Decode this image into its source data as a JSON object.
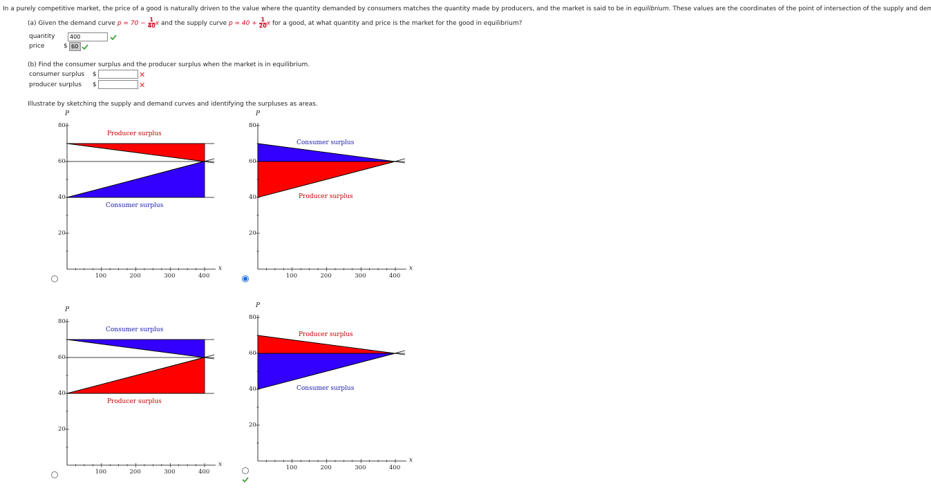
{
  "intro": {
    "text1": "In a purely competitive market, the price of a good is naturally driven to the value where the quantity demanded by consumers matches the quantity made by producers, and the market is said to be in ",
    "emph": "equilibrium",
    "text2": ". These values are the coordinates of the point of intersection of the supply and demand curve"
  },
  "part_a": {
    "prefix": "(a) Given the demand curve",
    "demand_lhs": "p = 70 −",
    "demand_num": "1",
    "demand_den": "40",
    "demand_var": "x",
    "mid": "and the supply curve",
    "supply_lhs": "p = 40 +",
    "supply_num": "1",
    "supply_den": "20",
    "supply_var": "x",
    "suffix": "for a good, at what quantity and price is the market for the good in equilibrium?",
    "quantity_label": "quantity",
    "quantity_value": "400",
    "price_label": "price",
    "dollar": "$",
    "price_value": "60"
  },
  "part_b": {
    "prompt": "(b) Find the consumer surplus and the producer surplus when the market is in equilibrium.",
    "consumer_label": "consumer surplus",
    "producer_label": "producer surplus",
    "dollar": "$",
    "consumer_value": "",
    "producer_value": "",
    "wrong_mark": "✕"
  },
  "illustrate": "Illustrate by sketching the supply and demand curves and identifying the surpluses as areas.",
  "graphs": {
    "p_label": "P",
    "x_label": "x",
    "yticks": [
      "80",
      "60",
      "40",
      "20"
    ],
    "xticks": [
      "100",
      "200",
      "300",
      "400"
    ],
    "consumer_label": "Consumer surplus",
    "producer_label": "Producer surplus",
    "colors": {
      "red": "#ff0000",
      "blue": "#3300ff"
    },
    "options": [
      {
        "upper": "Producer surplus",
        "lower": "Consumer surplus",
        "selected": false
      },
      {
        "upper": "Consumer surplus",
        "lower": "Producer surplus",
        "selected": true
      },
      {
        "upper": "Consumer surplus",
        "lower": "Producer surplus",
        "selected": false
      },
      {
        "upper": "Producer surplus",
        "lower": "Consumer surplus",
        "selected": false
      }
    ]
  }
}
